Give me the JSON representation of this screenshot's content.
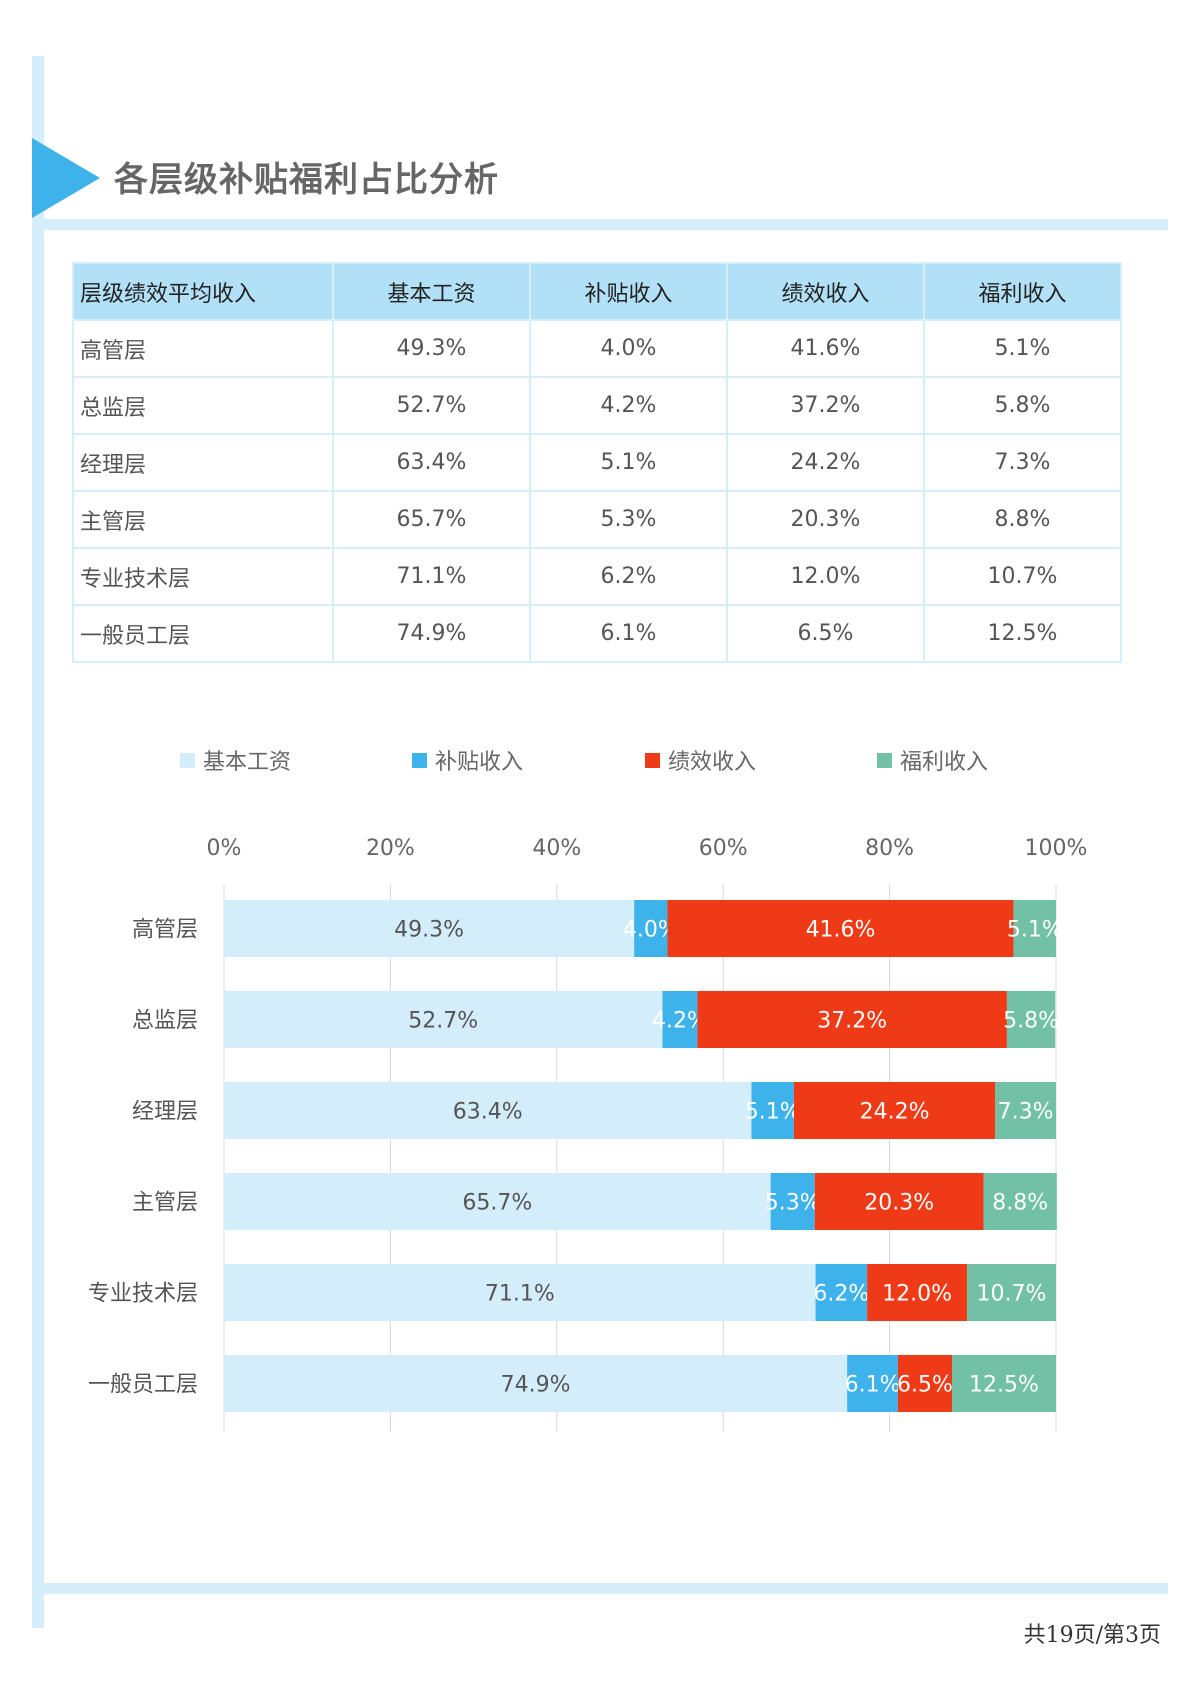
{
  "title": "各层级补贴福利占比分析",
  "table": {
    "headers": [
      "层级绩效平均收入",
      "基本工资",
      "补贴收入",
      "绩效收入",
      "福利收入"
    ],
    "rows": [
      [
        "高管层",
        "49.3%",
        "4.0%",
        "41.6%",
        "5.1%"
      ],
      [
        "总监层",
        "52.7%",
        "4.2%",
        "37.2%",
        "5.8%"
      ],
      [
        "经理层",
        "63.4%",
        "5.1%",
        "24.2%",
        "7.3%"
      ],
      [
        "主管层",
        "65.7%",
        "5.3%",
        "20.3%",
        "8.8%"
      ],
      [
        "专业技术层",
        "71.1%",
        "6.2%",
        "12.0%",
        "10.7%"
      ],
      [
        "一般员工层",
        "74.9%",
        "6.1%",
        "6.5%",
        "12.5%"
      ]
    ]
  },
  "chart_data": {
    "type": "bar",
    "orientation": "horizontal",
    "stacked": "percent",
    "categories": [
      "高管层",
      "总监层",
      "经理层",
      "主管层",
      "专业技术层",
      "一般员工层"
    ],
    "series": [
      {
        "name": "基本工资",
        "color": "#d4edfa",
        "label_color": "#555555",
        "values": [
          49.3,
          52.7,
          63.4,
          65.7,
          71.1,
          74.9
        ]
      },
      {
        "name": "补贴收入",
        "color": "#3db2eb",
        "label_color": "#ffffff",
        "values": [
          4.0,
          4.2,
          5.1,
          5.3,
          6.2,
          6.1
        ]
      },
      {
        "name": "绩效收入",
        "color": "#ee3a17",
        "label_color": "#ffffff",
        "values": [
          41.6,
          37.2,
          24.2,
          20.3,
          12.0,
          6.5
        ]
      },
      {
        "name": "福利收入",
        "color": "#72c0a6",
        "label_color": "#ffffff",
        "values": [
          5.1,
          5.8,
          7.3,
          8.8,
          10.7,
          12.5
        ]
      }
    ],
    "xlim": [
      0,
      100
    ],
    "x_ticks": [
      "0%",
      "20%",
      "40%",
      "60%",
      "80%",
      "100%"
    ],
    "x_axis_position": "top",
    "legend_position": "top",
    "grid": true
  },
  "footer": {
    "page_info": "共19页/第3页"
  }
}
